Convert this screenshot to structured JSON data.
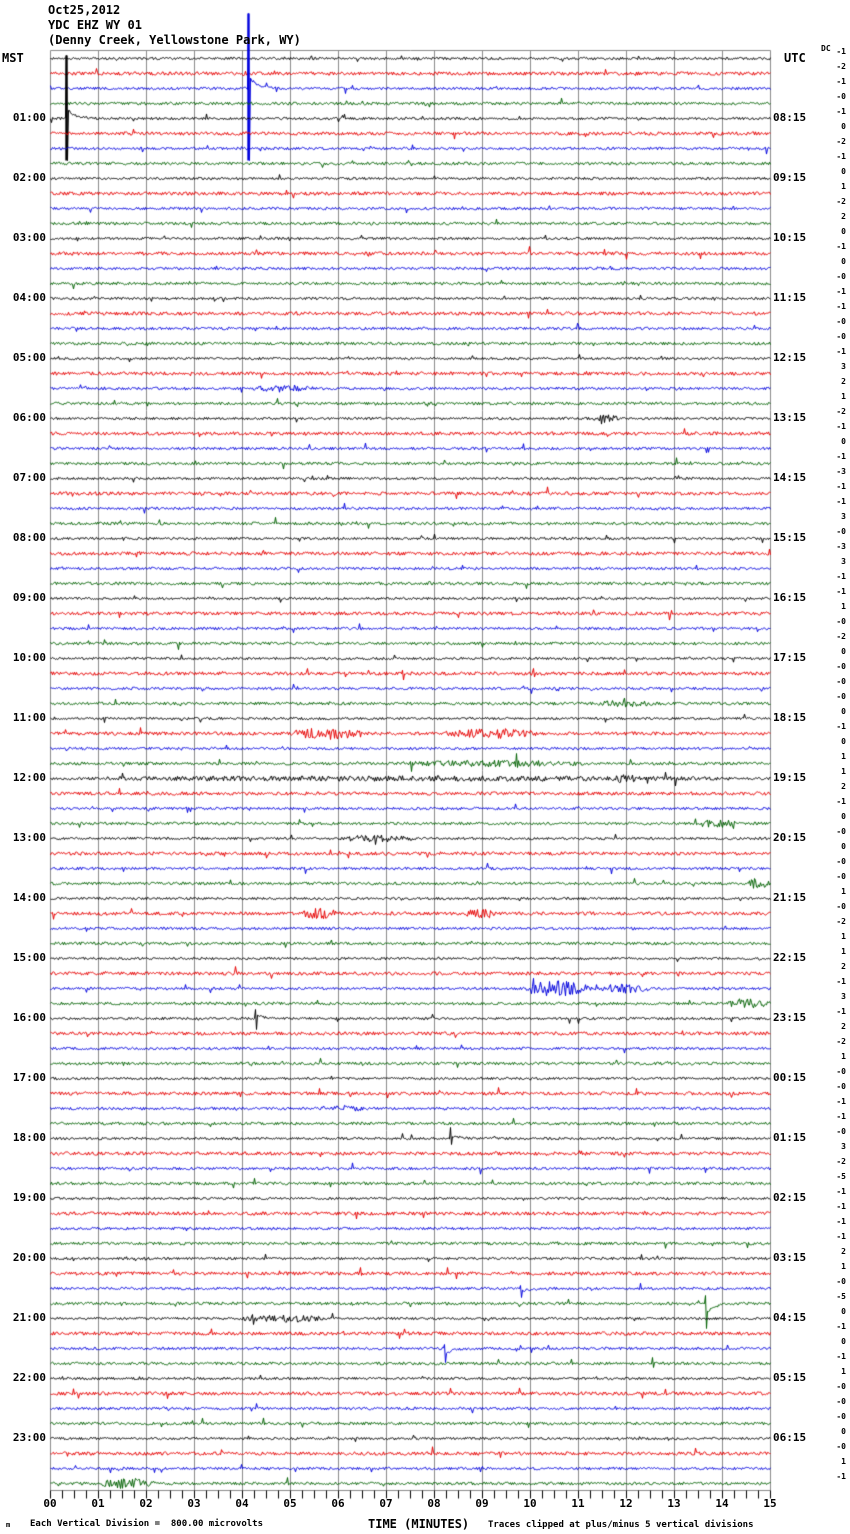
{
  "header": {
    "date": "Oct25,2012",
    "station": "YDC EHZ WY 01",
    "location": "(Denny Creek, Yellowstone Park, WY)"
  },
  "axis": {
    "left_tz": "MST",
    "right_tz": "UTC",
    "dc_label": "DC",
    "x_title": "TIME (MINUTES)",
    "minute_labels": [
      "00",
      "01",
      "02",
      "03",
      "04",
      "05",
      "06",
      "07",
      "08",
      "09",
      "10",
      "11",
      "12",
      "13",
      "14",
      "15"
    ]
  },
  "footer": {
    "logo_glyph": "m",
    "scale_note": "Each Vertical Division =  800.00 microvolts",
    "clip_note": "Traces clipped at plus/minus 5 vertical divisions"
  },
  "chart_data": {
    "type": "line",
    "title": "YDC EHZ WY 01 (Denny Creek, Yellowstone Park, WY) Oct25,2012 helicorder",
    "x_range_minutes": [
      0,
      15
    ],
    "minor_tick_minutes": 0.25,
    "minutes_per_trace": 15,
    "traces_per_hour": 4,
    "hours": 24,
    "clip_divisions": 5,
    "division_microvolts": "800.00",
    "trace_color_cycle": [
      "black",
      "red",
      "blue",
      "green"
    ],
    "colors": {
      "black": "#000000",
      "red": "#e60000",
      "blue": "#0000dd",
      "green": "#006100",
      "grid": "#8a8a8a"
    },
    "noise_amp": {
      "black": 1.2,
      "red": 1.7,
      "blue": 1.3,
      "green": 1.4
    },
    "rows": [
      {
        "mst": "",
        "utc": ""
      },
      {
        "mst": "01:00",
        "utc": "08:15"
      },
      {
        "mst": "02:00",
        "utc": "09:15"
      },
      {
        "mst": "03:00",
        "utc": "10:15"
      },
      {
        "mst": "04:00",
        "utc": "11:15"
      },
      {
        "mst": "05:00",
        "utc": "12:15"
      },
      {
        "mst": "06:00",
        "utc": "13:15"
      },
      {
        "mst": "07:00",
        "utc": "14:15"
      },
      {
        "mst": "08:00",
        "utc": "15:15"
      },
      {
        "mst": "09:00",
        "utc": "16:15"
      },
      {
        "mst": "10:00",
        "utc": "17:15"
      },
      {
        "mst": "11:00",
        "utc": "18:15"
      },
      {
        "mst": "12:00",
        "utc": "19:15"
      },
      {
        "mst": "13:00",
        "utc": "20:15"
      },
      {
        "mst": "14:00",
        "utc": "21:15"
      },
      {
        "mst": "15:00",
        "utc": "22:15"
      },
      {
        "mst": "16:00",
        "utc": "23:15"
      },
      {
        "mst": "17:00",
        "utc": "00:15"
      },
      {
        "mst": "18:00",
        "utc": "01:15"
      },
      {
        "mst": "19:00",
        "utc": "02:15"
      },
      {
        "mst": "20:00",
        "utc": "03:15"
      },
      {
        "mst": "21:00",
        "utc": "04:15"
      },
      {
        "mst": "22:00",
        "utc": "05:15"
      },
      {
        "mst": "23:00",
        "utc": "06:15"
      }
    ],
    "dc_offsets": [
      "-1",
      "-2",
      "-1",
      "-0",
      "-1",
      "0",
      "-2",
      "-1",
      "0",
      "1",
      "-2",
      "2",
      "0",
      "-1",
      "0",
      "-0",
      "-1",
      "-1",
      "-0",
      "-0",
      "-1",
      "3",
      "2",
      "1",
      "-2",
      "-1",
      "0",
      "-1",
      "-3",
      "-1",
      "-1",
      "3",
      "-0",
      "-3",
      "3",
      "-1",
      "-1",
      "1",
      "-0",
      "-2",
      "0",
      "-0",
      "-0",
      "-0",
      "0",
      "-1",
      "0",
      "1",
      "1",
      "2",
      "-1",
      "0",
      "-0",
      "0",
      "-0",
      "-0",
      "1",
      "-0",
      "-2",
      "1",
      "1",
      "2",
      "-1",
      "3",
      "-1",
      "2",
      "-2",
      "1",
      "-0",
      "-0",
      "-1",
      "-1",
      "-0",
      "3",
      "-2",
      "-5",
      "-1",
      "-1",
      "-1",
      "-1",
      "2",
      "1",
      "-0",
      "-5",
      "0",
      "-1",
      "0",
      "-1",
      "1",
      "-0",
      "-0",
      "-0",
      "0",
      "-0",
      "1",
      "-1"
    ],
    "events": [
      {
        "trace": 2,
        "kind": "clip",
        "m": 4.125,
        "up": 75,
        "down": 72,
        "rec": -11
      },
      {
        "trace": 4,
        "kind": "clip",
        "m": 0.33,
        "up": 63,
        "down": 42,
        "rec": -9
      },
      {
        "trace": 22,
        "kind": "burst",
        "s": 4.2,
        "e": 5.5,
        "a": 2.5
      },
      {
        "trace": 24,
        "kind": "burst",
        "s": 11.3,
        "e": 11.9,
        "a": 3
      },
      {
        "trace": 43,
        "kind": "burst",
        "s": 11.3,
        "e": 12.8,
        "a": 2
      },
      {
        "trace": 45,
        "kind": "burst",
        "s": 5.0,
        "e": 6.6,
        "a": 5
      },
      {
        "trace": 45,
        "kind": "burst",
        "s": 8.2,
        "e": 10.2,
        "a": 3.5
      },
      {
        "trace": 47,
        "kind": "spike",
        "m": 7.5,
        "up": 2,
        "down": 8,
        "rec": 0
      },
      {
        "trace": 47,
        "kind": "spike",
        "m": 9.7,
        "up": 10,
        "down": 4,
        "rec": 0
      },
      {
        "trace": 47,
        "kind": "burst",
        "s": 7.2,
        "e": 11.2,
        "a": 2
      },
      {
        "trace": 48,
        "kind": "burst",
        "s": 0.2,
        "e": 14.8,
        "a": 1.6
      },
      {
        "trace": 48,
        "kind": "burst",
        "s": 11.7,
        "e": 12.2,
        "a": 2.5
      },
      {
        "trace": 51,
        "kind": "burst",
        "s": 13.4,
        "e": 14.3,
        "a": 3
      },
      {
        "trace": 52,
        "kind": "burst",
        "s": 6.0,
        "e": 7.6,
        "a": 2.5
      },
      {
        "trace": 55,
        "kind": "burst",
        "s": 14.5,
        "e": 15,
        "a": 5
      },
      {
        "trace": 57,
        "kind": "burst",
        "s": 5.2,
        "e": 6.0,
        "a": 4
      },
      {
        "trace": 57,
        "kind": "burst",
        "s": 8.6,
        "e": 9.4,
        "a": 3
      },
      {
        "trace": 62,
        "kind": "burst",
        "s": 9.9,
        "e": 11.3,
        "a": 7
      },
      {
        "trace": 62,
        "kind": "burst",
        "s": 11.4,
        "e": 12.5,
        "a": 3.5
      },
      {
        "trace": 63,
        "kind": "burst",
        "s": 14.0,
        "e": 15,
        "a": 3.5
      },
      {
        "trace": 64,
        "kind": "spike",
        "m": 4.27,
        "up": 9,
        "down": 11,
        "rec": -3
      },
      {
        "trace": 70,
        "kind": "burst",
        "s": 5.8,
        "e": 6.6,
        "a": 2
      },
      {
        "trace": 72,
        "kind": "spike",
        "m": 8.33,
        "up": 11,
        "down": 6,
        "rec": -3
      },
      {
        "trace": 81,
        "kind": "spike",
        "m": 6.45,
        "up": 6,
        "down": 2,
        "rec": 0
      },
      {
        "trace": 82,
        "kind": "spike",
        "m": 9.79,
        "up": 3,
        "down": 9,
        "rec": 3
      },
      {
        "trace": 83,
        "kind": "spike",
        "m": 13.65,
        "up": 8,
        "down": 25,
        "rec": 10
      },
      {
        "trace": 84,
        "kind": "burst",
        "s": 3.9,
        "e": 5.8,
        "a": 2.5
      },
      {
        "trace": 84,
        "kind": "spike",
        "m": 4.2,
        "up": 4,
        "down": 6,
        "rec": 0
      },
      {
        "trace": 86,
        "kind": "spike",
        "m": 8.2,
        "up": 4,
        "down": 14,
        "rec": 5
      },
      {
        "trace": 87,
        "kind": "spike",
        "m": 12.55,
        "up": 6,
        "down": 4,
        "rec": 0
      },
      {
        "trace": 95,
        "kind": "burst",
        "s": 1.05,
        "e": 2.2,
        "a": 4.5
      }
    ]
  }
}
